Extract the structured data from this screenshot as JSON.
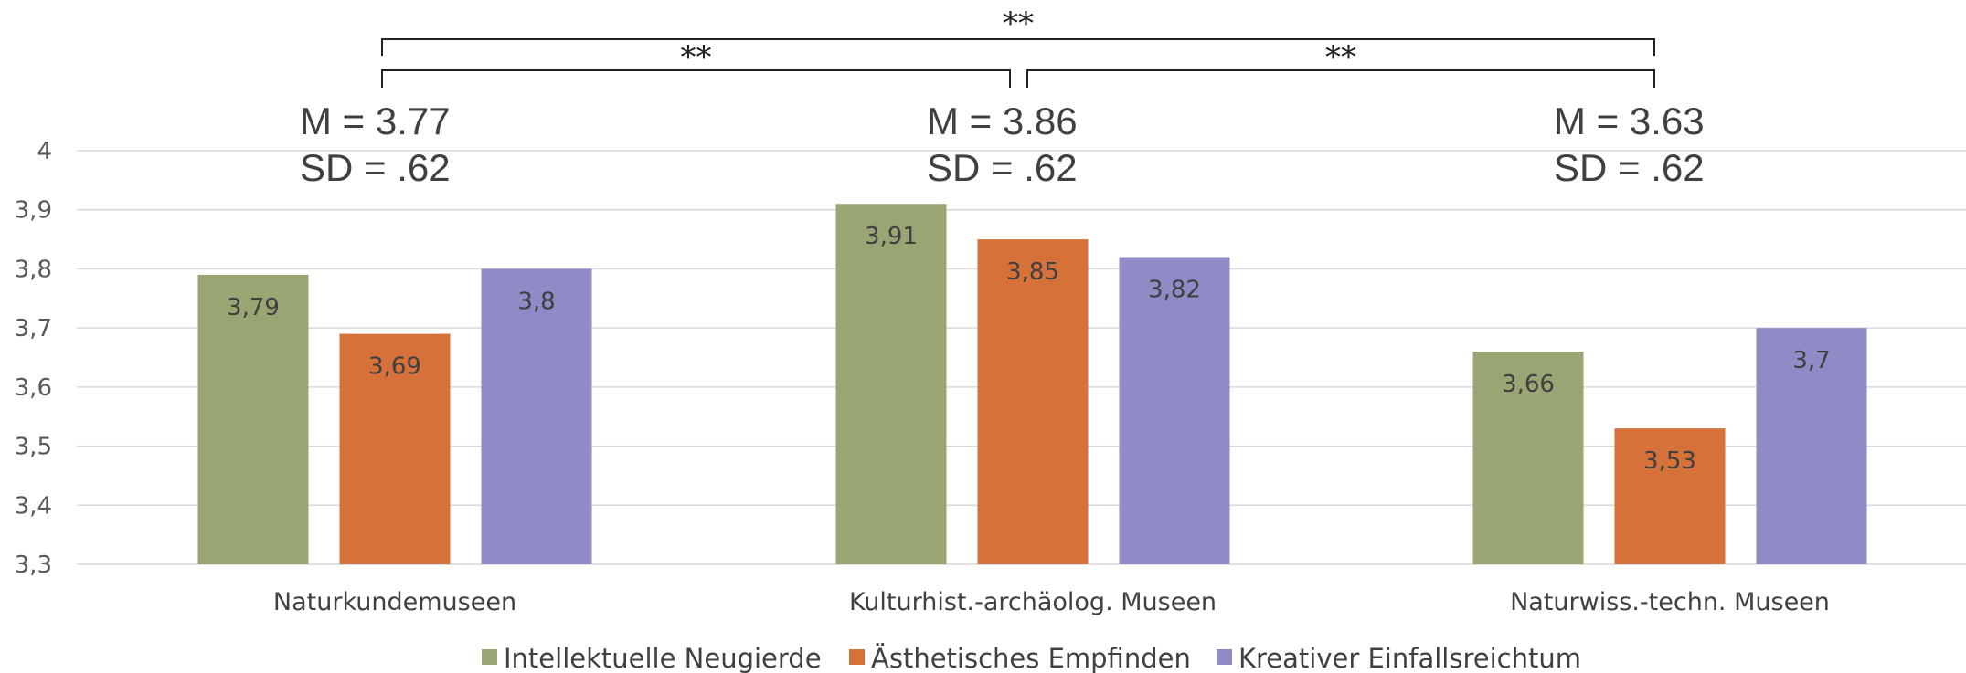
{
  "chart_data": {
    "type": "bar",
    "title": "",
    "xlabel": "",
    "ylabel": "",
    "ylim": [
      3.3,
      4.0
    ],
    "y_ticks": [
      "3,3",
      "3,4",
      "3,5",
      "3,6",
      "3,7",
      "3,8",
      "3,9",
      "4"
    ],
    "y_tick_values": [
      3.3,
      3.4,
      3.5,
      3.6,
      3.7,
      3.8,
      3.9,
      4.0
    ],
    "grid": true,
    "legend_position": "bottom",
    "categories": [
      "Naturkundemuseen",
      "Kulturhist.-archäolog. Museen",
      "Naturwiss.-techn. Museen"
    ],
    "series": [
      {
        "name": "Intellektuelle Neugierde",
        "color": "#9aa574",
        "values": [
          3.79,
          3.91,
          3.66
        ],
        "labels": [
          "3,79",
          "3,91",
          "3,66"
        ]
      },
      {
        "name": "Ästhetisches Empfinden",
        "color": "#d6713a",
        "values": [
          3.69,
          3.85,
          3.53
        ],
        "labels": [
          "3,69",
          "3,85",
          "3,53"
        ]
      },
      {
        "name": "Kreativer Einfallsreichtum",
        "color": "#8f8bc6",
        "values": [
          3.8,
          3.82,
          3.7
        ],
        "labels": [
          "3,8",
          "3,82",
          "3,7"
        ]
      }
    ],
    "annotations": [
      {
        "category": "Naturkundemuseen",
        "mean": "M = 3.77",
        "sd": "SD = .62"
      },
      {
        "category": "Kulturhist.-archäolog. Museen",
        "mean": "M = 3.86",
        "sd": "SD = .62"
      },
      {
        "category": "Naturwiss.-techn. Museen",
        "mean": "M = 3.63",
        "sd": "SD = .62"
      }
    ],
    "significance": [
      {
        "from": "Naturkundemuseen",
        "to": "Naturwiss.-techn. Museen",
        "label": "**"
      },
      {
        "from": "Naturkundemuseen",
        "to": "Kulturhist.-archäolog. Museen",
        "label": "**"
      },
      {
        "from": "Kulturhist.-archäolog. Museen",
        "to": "Naturwiss.-techn. Museen",
        "label": "**"
      }
    ]
  }
}
